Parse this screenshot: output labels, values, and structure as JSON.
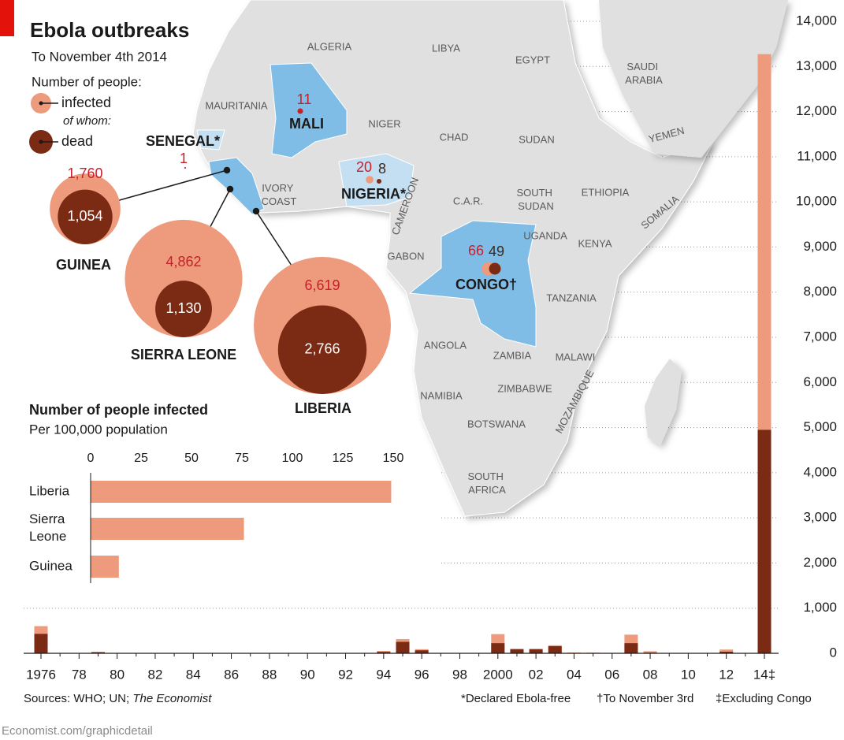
{
  "header": {
    "title": "Ebola outbreaks",
    "subtitle": "To November 4th 2014"
  },
  "map": {
    "countries": [
      "ALGERIA",
      "LIBYA",
      "EGYPT",
      "SAUDI ARABIA",
      "MAURITANIA",
      "NIGER",
      "CHAD",
      "SUDAN",
      "YEMEN",
      "IVORY COAST",
      "SOUTH SUDAN",
      "ETHIOPIA",
      "C.A.R.",
      "CAMEROON",
      "SOMALIA",
      "UGANDA",
      "KENYA",
      "GABON",
      "TANZANIA",
      "ANGOLA",
      "ZAMBIA",
      "MALAWI",
      "MOZAMBIQUE",
      "ZIMBABWE",
      "NAMIBIA",
      "BOTSWANA",
      "SOUTH AFRICA"
    ]
  },
  "chart_data": [
    {
      "type": "bubble",
      "legend_title": "Number of people:",
      "legend_note": "of whom:",
      "categories": [
        "GUINEA",
        "SIERRA LEONE",
        "LIBERIA",
        "MALI",
        "SENEGAL*",
        "NIGERIA*",
        "CONGO†"
      ],
      "series": [
        {
          "name": "infected",
          "color": "#ee9a7c",
          "values": [
            1760,
            4862,
            6619,
            11,
            1,
            20,
            66
          ],
          "value_labels": [
            "1,760",
            "4,862",
            "6,619",
            "11",
            "1",
            "20",
            "66"
          ]
        },
        {
          "name": "dead",
          "color": "#7b2a14",
          "values": [
            1054,
            1130,
            2766,
            null,
            null,
            8,
            49
          ],
          "value_labels": [
            "1,054",
            "1,130",
            "2,766",
            null,
            null,
            "8",
            "49"
          ]
        }
      ]
    },
    {
      "type": "hbar",
      "title": "Number of people infected",
      "subtitle": "Per 100,000 population",
      "categories": [
        "Liberia",
        "Sierra Leone",
        "Guinea"
      ],
      "values": [
        149,
        76,
        14
      ],
      "color": "#ee9a7c",
      "xlim": [
        0,
        150
      ],
      "xticks": [
        0,
        25,
        50,
        75,
        100,
        125,
        150
      ]
    },
    {
      "type": "column",
      "categories": [
        "1976",
        null,
        "78",
        null,
        "80",
        null,
        "82",
        null,
        "84",
        null,
        "86",
        null,
        "88",
        null,
        "90",
        null,
        "92",
        null,
        "94",
        null,
        "96",
        null,
        "98",
        null,
        "2000",
        null,
        "02",
        null,
        "04",
        null,
        "06",
        null,
        "08",
        null,
        "10",
        null,
        "12",
        null,
        "14‡"
      ],
      "series": [
        {
          "color": "#ee9a7c",
          "values": [
            602,
            0,
            0,
            34,
            0,
            0,
            0,
            0,
            0,
            0,
            0,
            0,
            0,
            0,
            0,
            0,
            0,
            0,
            52,
            315,
            91,
            0,
            0,
            0,
            425,
            100,
            100,
            178,
            17,
            12,
            0,
            413,
            46,
            0,
            0,
            1,
            84,
            0,
            13273
          ]
        },
        {
          "color": "#7b2a14",
          "values": [
            431,
            0,
            0,
            22,
            0,
            0,
            0,
            0,
            0,
            0,
            0,
            0,
            0,
            0,
            0,
            0,
            0,
            0,
            31,
            254,
            66,
            0,
            0,
            0,
            224,
            90,
            90,
            157,
            7,
            10,
            0,
            224,
            15,
            0,
            0,
            1,
            36,
            0,
            4950
          ]
        }
      ],
      "ylim": [
        0,
        14000
      ],
      "yticks": [
        0,
        {
          "value": 1000,
          "label": "1,000"
        },
        {
          "value": 2000,
          "label": "2,000"
        },
        {
          "value": 3000,
          "label": "3,000"
        },
        {
          "value": 4000,
          "label": "4,000"
        },
        {
          "value": 5000,
          "label": "5,000"
        },
        {
          "value": 6000,
          "label": "6,000"
        },
        {
          "value": 7000,
          "label": "7,000"
        },
        {
          "value": 8000,
          "label": "8,000"
        },
        {
          "value": 9000,
          "label": "9,000"
        },
        {
          "value": 10000,
          "label": "10,000"
        },
        {
          "value": 11000,
          "label": "11,000"
        },
        {
          "value": 12000,
          "label": "12,000"
        },
        {
          "value": 13000,
          "label": "13,000"
        },
        {
          "value": 14000,
          "label": "14,000"
        }
      ],
      "grid": true
    }
  ],
  "footer": {
    "sources": "Sources: WHO; UN; ",
    "sources_italic": "The Economist",
    "notes": [
      "*Declared Ebola-free",
      "†To November 3rd",
      "‡Excluding Congo"
    ],
    "credit": "Economist.com/graphicdetail"
  }
}
